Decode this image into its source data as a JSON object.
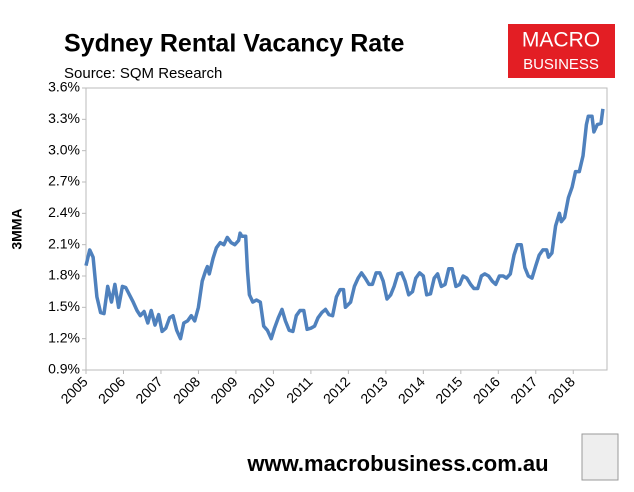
{
  "chart_data": {
    "type": "line",
    "title": "Sydney Rental Vacancy Rate",
    "subtitle": "Source: SQM Research",
    "y_label": "3MMA",
    "logo": [
      "MACRO",
      "BUSINESS"
    ],
    "footer": "www.macrobusiness.com.au",
    "color": "#4f81bd",
    "grid": false,
    "xlim": [
      2005,
      2018.9
    ],
    "xticks": [
      2005,
      2006,
      2007,
      2008,
      2009,
      2010,
      2011,
      2012,
      2013,
      2014,
      2015,
      2016,
      2017,
      2018
    ],
    "ylim": [
      0.9,
      3.6
    ],
    "yticks": [
      {
        "value": 0.9,
        "label": "0.9%"
      },
      {
        "value": 1.2,
        "label": "1.2%"
      },
      {
        "value": 1.5,
        "label": "1.5%"
      },
      {
        "value": 1.8,
        "label": "1.8%"
      },
      {
        "value": 2.1,
        "label": "2.1%"
      },
      {
        "value": 2.4,
        "label": "2.4%"
      },
      {
        "value": 2.7,
        "label": "2.7%"
      },
      {
        "value": 3.0,
        "label": "3.0%"
      },
      {
        "value": 3.3,
        "label": "3.3%"
      },
      {
        "value": 3.6,
        "label": "3.6%"
      }
    ],
    "x": [
      2005.0,
      2005.1,
      2005.19,
      2005.29,
      2005.39,
      2005.48,
      2005.58,
      2005.68,
      2005.77,
      2005.87,
      2005.97,
      2006.06,
      2006.26,
      2006.36,
      2006.45,
      2006.55,
      2006.65,
      2006.74,
      2006.84,
      2006.94,
      2007.03,
      2007.13,
      2007.23,
      2007.32,
      2007.42,
      2007.52,
      2007.61,
      2007.71,
      2007.81,
      2007.9,
      2008.0,
      2008.1,
      2008.19,
      2008.24,
      2008.29,
      2008.39,
      2008.48,
      2008.58,
      2008.68,
      2008.77,
      2008.87,
      2008.97,
      2009.07,
      2009.11,
      2009.16,
      2009.26,
      2009.31,
      2009.36,
      2009.45,
      2009.55,
      2009.65,
      2009.74,
      2009.84,
      2009.94,
      2010.03,
      2010.13,
      2010.23,
      2010.32,
      2010.42,
      2010.52,
      2010.61,
      2010.71,
      2010.81,
      2010.9,
      2011.0,
      2011.1,
      2011.19,
      2011.29,
      2011.39,
      2011.48,
      2011.58,
      2011.68,
      2011.78,
      2011.87,
      2011.92,
      2012.06,
      2012.16,
      2012.26,
      2012.35,
      2012.45,
      2012.55,
      2012.64,
      2012.74,
      2012.84,
      2012.93,
      2013.03,
      2013.13,
      2013.22,
      2013.32,
      2013.42,
      2013.51,
      2013.61,
      2013.71,
      2013.8,
      2013.9,
      2014.0,
      2014.09,
      2014.19,
      2014.29,
      2014.38,
      2014.48,
      2014.58,
      2014.68,
      2014.77,
      2014.87,
      2014.97,
      2015.06,
      2015.16,
      2015.26,
      2015.35,
      2015.45,
      2015.55,
      2015.64,
      2015.74,
      2015.84,
      2015.93,
      2016.03,
      2016.13,
      2016.22,
      2016.32,
      2016.42,
      2016.51,
      2016.61,
      2016.71,
      2016.8,
      2016.9,
      2017.0,
      2017.09,
      2017.19,
      2017.29,
      2017.34,
      2017.43,
      2017.53,
      2017.63,
      2017.68,
      2017.77,
      2017.87,
      2017.97,
      2018.06,
      2018.16,
      2018.26,
      2018.35,
      2018.4,
      2018.5,
      2018.55,
      2018.64,
      2018.74,
      2018.79
    ],
    "values": [
      1.9,
      2.05,
      1.98,
      1.6,
      1.45,
      1.44,
      1.7,
      1.55,
      1.72,
      1.5,
      1.7,
      1.69,
      1.55,
      1.47,
      1.42,
      1.46,
      1.35,
      1.47,
      1.33,
      1.43,
      1.27,
      1.3,
      1.4,
      1.42,
      1.28,
      1.2,
      1.35,
      1.37,
      1.42,
      1.37,
      1.5,
      1.75,
      1.85,
      1.89,
      1.82,
      1.97,
      2.07,
      2.12,
      2.1,
      2.17,
      2.12,
      2.1,
      2.14,
      2.21,
      2.18,
      2.18,
      1.85,
      1.62,
      1.55,
      1.57,
      1.55,
      1.32,
      1.28,
      1.2,
      1.3,
      1.4,
      1.48,
      1.37,
      1.28,
      1.27,
      1.42,
      1.47,
      1.47,
      1.29,
      1.3,
      1.32,
      1.4,
      1.45,
      1.48,
      1.43,
      1.42,
      1.6,
      1.67,
      1.67,
      1.5,
      1.55,
      1.7,
      1.78,
      1.83,
      1.78,
      1.72,
      1.72,
      1.83,
      1.83,
      1.75,
      1.58,
      1.62,
      1.7,
      1.82,
      1.83,
      1.75,
      1.62,
      1.65,
      1.78,
      1.83,
      1.8,
      1.62,
      1.63,
      1.78,
      1.82,
      1.7,
      1.72,
      1.87,
      1.87,
      1.7,
      1.72,
      1.8,
      1.78,
      1.72,
      1.68,
      1.68,
      1.8,
      1.82,
      1.8,
      1.75,
      1.72,
      1.8,
      1.8,
      1.78,
      1.82,
      2.0,
      2.1,
      2.1,
      1.88,
      1.8,
      1.78,
      1.9,
      2.0,
      2.05,
      2.05,
      1.98,
      2.02,
      2.28,
      2.4,
      2.32,
      2.36,
      2.55,
      2.65,
      2.8,
      2.8,
      2.95,
      3.25,
      3.33,
      3.33,
      3.18,
      3.25,
      3.26,
      3.4
    ]
  }
}
